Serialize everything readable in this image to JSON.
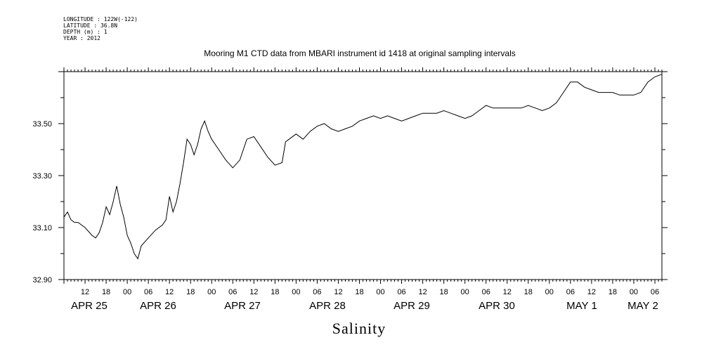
{
  "header": {
    "lines": [
      "LONGITUDE : 122W(-122)",
      "LATITUDE : 36.8N",
      "DEPTH (m) : 1",
      "YEAR : 2012"
    ]
  },
  "chart_data": {
    "type": "line",
    "title": "Mooring M1 CTD data from MBARI instrument id 1418 at original sampling intervals",
    "xlabel": "Salinity",
    "ylabel": "",
    "ylim": [
      32.9,
      33.7
    ],
    "y_ticks": [
      "32.90",
      "33.10",
      "33.30",
      "33.50"
    ],
    "x_range": [
      "2012-04-25T06:00",
      "2012-05-02T08:00"
    ],
    "x_hour_ticks": [
      "12",
      "18",
      "00",
      "06",
      "12",
      "18",
      "00",
      "06",
      "12",
      "18",
      "00",
      "06",
      "12",
      "18",
      "00",
      "06",
      "12",
      "18",
      "00",
      "06",
      "12",
      "18",
      "00",
      "06",
      "12",
      "18",
      "00",
      "06"
    ],
    "x_date_labels": [
      "APR 25",
      "APR 26",
      "APR 27",
      "APR 28",
      "APR 29",
      "APR 30",
      "MAY 1",
      "MAY 2"
    ],
    "grid": false,
    "series": [
      {
        "x": [
          "2012-04-25T06:00",
          "2012-04-25T07:00",
          "2012-04-25T08:00",
          "2012-04-25T09:00",
          "2012-04-25T10:00",
          "2012-04-25T12:00",
          "2012-04-25T14:00",
          "2012-04-25T15:00",
          "2012-04-25T16:00",
          "2012-04-25T17:00",
          "2012-04-25T18:00",
          "2012-04-25T19:00",
          "2012-04-25T20:00",
          "2012-04-25T21:00",
          "2012-04-25T22:00",
          "2012-04-25T23:00",
          "2012-04-26T00:00",
          "2012-04-26T01:00",
          "2012-04-26T02:00",
          "2012-04-26T03:00",
          "2012-04-26T04:00",
          "2012-04-26T06:00",
          "2012-04-26T08:00",
          "2012-04-26T10:00",
          "2012-04-26T11:00",
          "2012-04-26T12:00",
          "2012-04-26T13:00",
          "2012-04-26T14:00",
          "2012-04-26T15:00",
          "2012-04-26T16:00",
          "2012-04-26T17:00",
          "2012-04-26T18:00",
          "2012-04-26T19:00",
          "2012-04-26T20:00",
          "2012-04-26T21:00",
          "2012-04-26T22:00",
          "2012-04-26T23:00",
          "2012-04-27T00:00",
          "2012-04-27T02:00",
          "2012-04-27T04:00",
          "2012-04-27T06:00",
          "2012-04-27T08:00",
          "2012-04-27T10:00",
          "2012-04-27T12:00",
          "2012-04-27T14:00",
          "2012-04-27T16:00",
          "2012-04-27T18:00",
          "2012-04-27T20:00",
          "2012-04-27T21:00",
          "2012-04-27T22:00",
          "2012-04-28T00:00",
          "2012-04-28T02:00",
          "2012-04-28T04:00",
          "2012-04-28T06:00",
          "2012-04-28T08:00",
          "2012-04-28T10:00",
          "2012-04-28T12:00",
          "2012-04-28T14:00",
          "2012-04-28T16:00",
          "2012-04-28T18:00",
          "2012-04-28T20:00",
          "2012-04-28T22:00",
          "2012-04-29T00:00",
          "2012-04-29T02:00",
          "2012-04-29T04:00",
          "2012-04-29T06:00",
          "2012-04-29T08:00",
          "2012-04-29T10:00",
          "2012-04-29T12:00",
          "2012-04-29T14:00",
          "2012-04-29T16:00",
          "2012-04-29T18:00",
          "2012-04-29T20:00",
          "2012-04-29T22:00",
          "2012-04-30T00:00",
          "2012-04-30T02:00",
          "2012-04-30T04:00",
          "2012-04-30T06:00",
          "2012-04-30T08:00",
          "2012-04-30T10:00",
          "2012-04-30T12:00",
          "2012-04-30T14:00",
          "2012-04-30T16:00",
          "2012-04-30T18:00",
          "2012-04-30T20:00",
          "2012-04-30T22:00",
          "2012-05-01T00:00",
          "2012-05-01T02:00",
          "2012-05-01T04:00",
          "2012-05-01T06:00",
          "2012-05-01T08:00",
          "2012-05-01T10:00",
          "2012-05-01T12:00",
          "2012-05-01T14:00",
          "2012-05-01T16:00",
          "2012-05-01T18:00",
          "2012-05-01T20:00",
          "2012-05-01T22:00",
          "2012-05-02T00:00",
          "2012-05-02T02:00",
          "2012-05-02T04:00",
          "2012-05-02T06:00",
          "2012-05-02T08:00"
        ],
        "values": [
          33.14,
          33.16,
          33.13,
          33.12,
          33.12,
          33.1,
          33.07,
          33.06,
          33.08,
          33.12,
          33.18,
          33.15,
          33.2,
          33.26,
          33.19,
          33.14,
          33.07,
          33.04,
          33.0,
          32.98,
          33.03,
          33.06,
          33.09,
          33.11,
          33.13,
          33.22,
          33.16,
          33.2,
          33.27,
          33.35,
          33.44,
          33.42,
          33.38,
          33.42,
          33.48,
          33.51,
          33.47,
          33.44,
          33.4,
          33.36,
          33.33,
          33.36,
          33.44,
          33.45,
          33.41,
          33.37,
          33.34,
          33.35,
          33.43,
          33.44,
          33.46,
          33.44,
          33.47,
          33.49,
          33.5,
          33.48,
          33.47,
          33.48,
          33.49,
          33.51,
          33.52,
          33.53,
          33.52,
          33.53,
          33.52,
          33.51,
          33.52,
          33.53,
          33.54,
          33.54,
          33.54,
          33.55,
          33.54,
          33.53,
          33.52,
          33.53,
          33.55,
          33.57,
          33.56,
          33.56,
          33.56,
          33.56,
          33.56,
          33.57,
          33.56,
          33.55,
          33.56,
          33.58,
          33.62,
          33.66,
          33.66,
          33.64,
          33.63,
          33.62,
          33.62,
          33.62,
          33.61,
          33.61,
          33.61,
          33.62,
          33.66,
          33.68,
          33.69
        ]
      }
    ]
  }
}
